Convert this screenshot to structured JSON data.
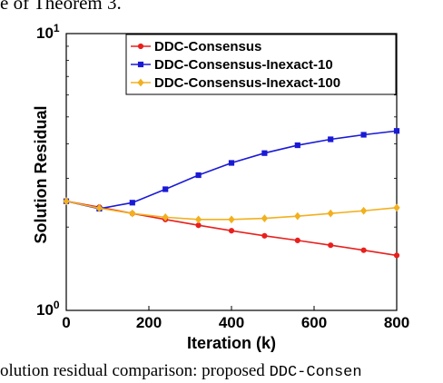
{
  "context": {
    "top_text": "e of Theorem 3.",
    "caption_prefix": "olution residual comparison: proposed ",
    "caption_code": "DDC-Consen"
  },
  "chart_data": {
    "type": "line",
    "xlabel": "Iteration (k)",
    "ylabel": "Solution Residual",
    "xlim": [
      0,
      800
    ],
    "ylim": [
      1,
      10
    ],
    "yscale": "log",
    "x_ticks": [
      "0",
      "200",
      "400",
      "600",
      "800"
    ],
    "y_ticks": [
      {
        "base": "10",
        "exp": "0"
      },
      {
        "base": "10",
        "exp": "1"
      }
    ],
    "grid": false,
    "legend_position": "top-right",
    "x": [
      0,
      80,
      160,
      240,
      320,
      400,
      480,
      560,
      640,
      720,
      800
    ],
    "series": [
      {
        "name": "DDC-Consensus",
        "color": "#e8201d",
        "marker": "circle",
        "values": [
          2.48,
          2.36,
          2.24,
          2.13,
          2.03,
          1.94,
          1.86,
          1.79,
          1.72,
          1.65,
          1.58
        ]
      },
      {
        "name": "DDC-Consensus-Inexact-10",
        "color": "#1a1ad6",
        "marker": "square",
        "values": [
          2.48,
          2.33,
          2.45,
          2.74,
          3.08,
          3.41,
          3.7,
          3.95,
          4.15,
          4.31,
          4.45
        ]
      },
      {
        "name": "DDC-Consensus-Inexact-100",
        "color": "#f2b01e",
        "marker": "diamond",
        "values": [
          2.48,
          2.34,
          2.24,
          2.17,
          2.13,
          2.13,
          2.15,
          2.19,
          2.24,
          2.29,
          2.35
        ]
      }
    ]
  }
}
